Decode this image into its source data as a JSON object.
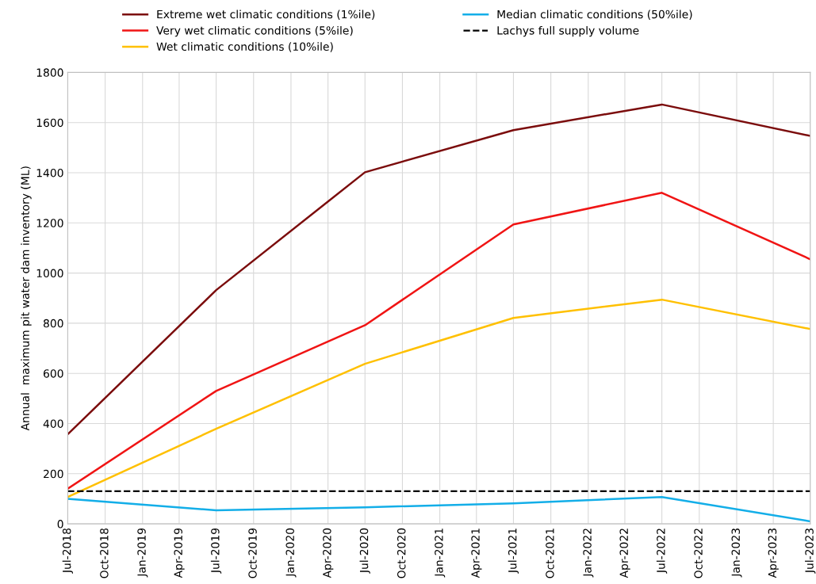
{
  "chart_data": {
    "type": "line",
    "ylabel": "Annual  maximum pit water dam inventory (ML)",
    "x": [
      "2018-07",
      "2019-07",
      "2020-07",
      "2021-07",
      "2022-07",
      "2023-07"
    ],
    "series": [
      {
        "name": "Extreme wet climatic conditions (1%ile)",
        "color": "#7b0c0c",
        "values": [
          357,
          932,
          1402,
          1570,
          1672,
          1547
        ]
      },
      {
        "name": "Very wet climatic conditions (5%ile)",
        "color": "#f01414",
        "values": [
          140,
          530,
          792,
          1194,
          1320,
          1055
        ]
      },
      {
        "name": "Wet climatic conditions (10%ile)",
        "color": "#ffc000",
        "values": [
          107,
          379,
          638,
          821,
          894,
          777
        ]
      },
      {
        "name": "Median climatic conditions (50%ile)",
        "color": "#13aee8",
        "values": [
          100,
          54,
          66,
          82,
          107,
          10
        ]
      }
    ],
    "ref_lines": [
      {
        "axis": "y",
        "value": 130,
        "label": "Lachys full supply volume",
        "color": "#000000",
        "line_style": "dashed"
      }
    ],
    "xlim": [
      "2018-07",
      "2023-07"
    ],
    "xticks": [
      {
        "value": "2018-07",
        "label": "Jul-2018"
      },
      {
        "value": "2018-10",
        "label": "Oct-2018"
      },
      {
        "value": "2019-01",
        "label": "Jan-2019"
      },
      {
        "value": "2019-04",
        "label": "Apr-2019"
      },
      {
        "value": "2019-07",
        "label": "Jul-2019"
      },
      {
        "value": "2019-10",
        "label": "Oct-2019"
      },
      {
        "value": "2020-01",
        "label": "Jan-2020"
      },
      {
        "value": "2020-04",
        "label": "Apr-2020"
      },
      {
        "value": "2020-07",
        "label": "Jul-2020"
      },
      {
        "value": "2020-10",
        "label": "Oct-2020"
      },
      {
        "value": "2021-01",
        "label": "Jan-2021"
      },
      {
        "value": "2021-04",
        "label": "Apr-2021"
      },
      {
        "value": "2021-07",
        "label": "Jul-2021"
      },
      {
        "value": "2021-10",
        "label": "Oct-2021"
      },
      {
        "value": "2022-01",
        "label": "Jan-2022"
      },
      {
        "value": "2022-04",
        "label": "Apr-2022"
      },
      {
        "value": "2022-07",
        "label": "Jul-2022"
      },
      {
        "value": "2022-10",
        "label": "Oct-2022"
      },
      {
        "value": "2023-01",
        "label": "Jan-2023"
      },
      {
        "value": "2023-04",
        "label": "Apr-2023"
      },
      {
        "value": "2023-07",
        "label": "Jul-2023"
      }
    ],
    "ylim": [
      0,
      1800
    ],
    "yticks": [
      0,
      200,
      400,
      600,
      800,
      1000,
      1200,
      1400,
      1600,
      1800
    ],
    "grid": true,
    "legend": "top",
    "marker": "none",
    "line_style": "solid"
  }
}
